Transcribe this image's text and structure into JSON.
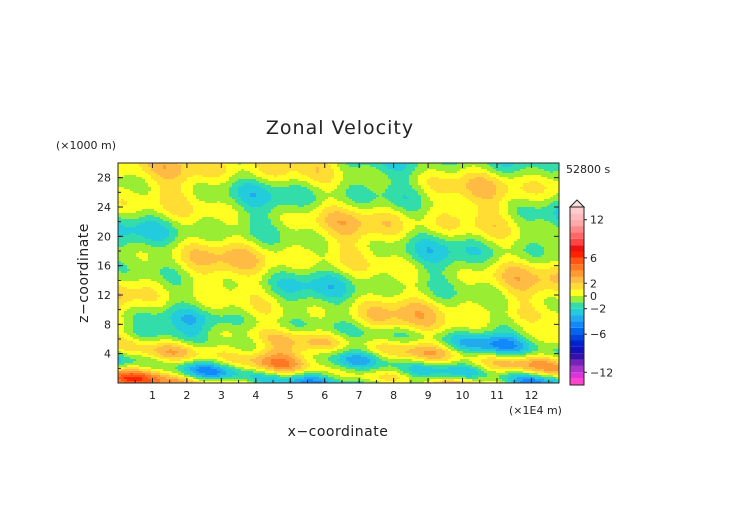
{
  "chart_data": {
    "type": "heatmap",
    "title": "Zonal Velocity",
    "xlabel": "x−coordinate",
    "ylabel": "z−coordinate",
    "x_unit": "(×1E4 m)",
    "y_unit": "(×1000 m)",
    "time_label": "52800 s",
    "xlim": [
      0,
      12.8
    ],
    "ylim": [
      0,
      30
    ],
    "x_ticks": [
      "1",
      "2",
      "3",
      "4",
      "5",
      "6",
      "7",
      "8",
      "9",
      "10",
      "11",
      "12"
    ],
    "y_ticks": [
      "4",
      "8",
      "12",
      "16",
      "20",
      "24",
      "28"
    ],
    "colorbar": {
      "levels": [
        -14,
        -13,
        -12,
        -11,
        -10,
        -9,
        -8,
        -7,
        -6,
        -5,
        -4,
        -3,
        -2,
        -1,
        0,
        1,
        2,
        3,
        4,
        5,
        6,
        7,
        8,
        9,
        10,
        11,
        12,
        13,
        14
      ],
      "colors": [
        "#ff44cc",
        "#dd33dd",
        "#aa33cc",
        "#7722bb",
        "#3311aa",
        "#1111bb",
        "#0022cc",
        "#0044dd",
        "#0066ee",
        "#1188ff",
        "#22aaee",
        "#22ccdd",
        "#33ddaa",
        "#99ee33",
        "#ffff22",
        "#ffdd33",
        "#ffbb44",
        "#ff9933",
        "#ff7722",
        "#ff5511",
        "#ff2200",
        "#ee1111",
        "#ff4444",
        "#ff6666",
        "#ff8888",
        "#ffaaaa",
        "#ffbbbb",
        "#ffcccc"
      ],
      "ticks": [
        "12",
        "6",
        "2",
        "0",
        "−2",
        "−6",
        "−12"
      ]
    }
  }
}
